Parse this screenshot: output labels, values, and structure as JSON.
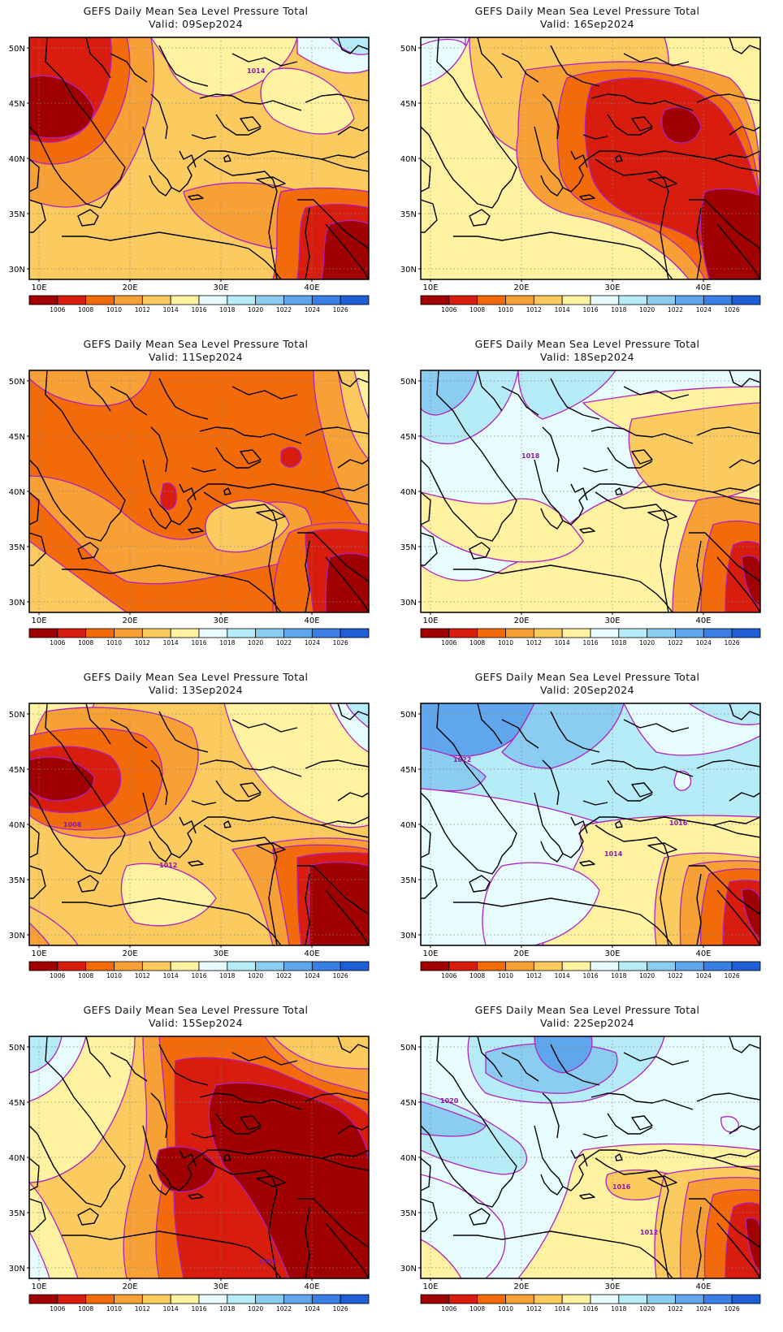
{
  "colorbar": {
    "labels": [
      "1006",
      "1008",
      "1010",
      "1012",
      "1014",
      "1016",
      "1018",
      "1020",
      "1022",
      "1024",
      "1026"
    ],
    "colors": [
      "#a00000",
      "#d81c0e",
      "#f36a0b",
      "#f7a036",
      "#fbcb60",
      "#fff2a0",
      "#e6fcff",
      "#b6ecf8",
      "#8bcdf0",
      "#5fa6ec",
      "#3a7fe4",
      "#1f5fd6"
    ]
  },
  "axes": {
    "lat_labels": [
      "50N",
      "45N",
      "40N",
      "35N",
      "30N"
    ],
    "lon_labels": [
      "10E",
      "20E",
      "30E",
      "40E"
    ]
  },
  "panels": [
    {
      "title": "GEFS Daily Mean Sea Level Pressure Total",
      "valid": "Valid: 09Sep2024",
      "contour_labels": [
        "1014"
      ]
    },
    {
      "title": "GEFS Daily Mean Sea Level Pressure Total",
      "valid": "Valid: 16Sep2024",
      "contour_labels": []
    },
    {
      "title": "GEFS Daily Mean Sea Level Pressure Total",
      "valid": "Valid: 11Sep2024",
      "contour_labels": []
    },
    {
      "title": "GEFS Daily Mean Sea Level Pressure Total",
      "valid": "Valid: 18Sep2024",
      "contour_labels": [
        "1018"
      ]
    },
    {
      "title": "GEFS Daily Mean Sea Level Pressure Total",
      "valid": "Valid: 13Sep2024",
      "contour_labels": [
        "1008",
        "1012"
      ]
    },
    {
      "title": "GEFS Daily Mean Sea Level Pressure Total",
      "valid": "Valid: 20Sep2024",
      "contour_labels": [
        "1022",
        "1016",
        "1014"
      ]
    },
    {
      "title": "GEFS Daily Mean Sea Level Pressure Total",
      "valid": "Valid: 15Sep2024",
      "contour_labels": [
        "1006"
      ]
    },
    {
      "title": "GEFS Daily Mean Sea Level Pressure Total",
      "valid": "Valid: 22Sep2024",
      "contour_labels": [
        "1020",
        "1016",
        "1012"
      ]
    }
  ]
}
